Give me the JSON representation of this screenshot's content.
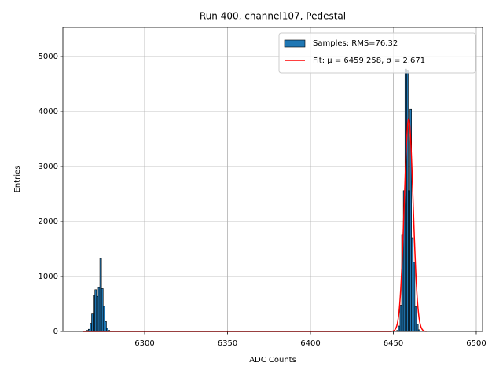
{
  "chart_data": {
    "type": "histogram",
    "title": "Run 400, channel107, Pedestal",
    "x_label": "ADC Counts",
    "y_label": "Entries",
    "bins": [
      6265,
      6266,
      6267,
      6268,
      6269,
      6270,
      6271,
      6272,
      6273,
      6274,
      6275,
      6276,
      6277,
      6278,
      6279,
      6452,
      6453,
      6454,
      6455,
      6456,
      6457,
      6458,
      6459,
      6460,
      6461,
      6462,
      6463,
      6464,
      6465,
      6466
    ],
    "series": [
      {
        "name": "Samples: RMS=76.32",
        "color": "#1f77b4",
        "values": [
          20,
          40,
          150,
          320,
          660,
          760,
          640,
          800,
          1330,
          780,
          460,
          180,
          60,
          20,
          0,
          20,
          100,
          480,
          1760,
          2560,
          4770,
          4750,
          2560,
          4040,
          1700,
          1260,
          450,
          130,
          30
        ]
      },
      {
        "name": "Fit: μ = 6459.258, σ = 2.671",
        "color": "#ff0000",
        "type": "gaussian",
        "mu": 6459.258,
        "sigma": 2.671,
        "amplitude": 3870,
        "range": [
          6263,
          6470
        ]
      }
    ],
    "xlim": [
      6250.7,
      6503.8
    ],
    "xticks": [
      6300,
      6350,
      6400,
      6450,
      6500
    ],
    "ylim": [
      0,
      5529
    ],
    "yticks": [
      0,
      1000,
      2000,
      3000,
      4000,
      5000
    ],
    "grid": true,
    "legend": "upper right"
  }
}
